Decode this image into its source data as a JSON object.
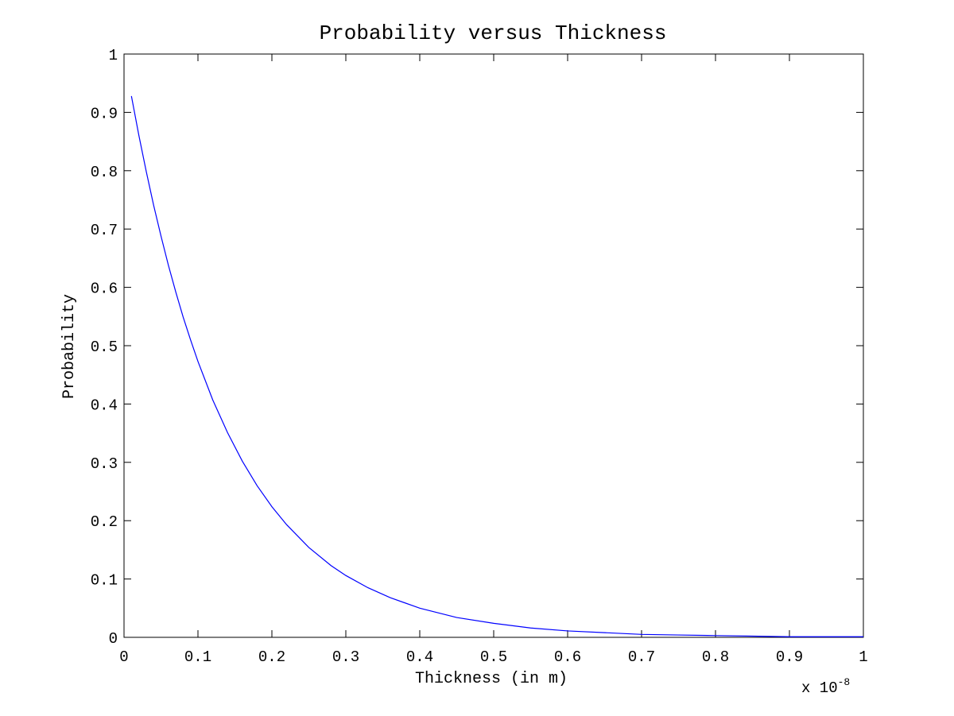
{
  "chart_data": {
    "type": "line",
    "title": "Probability versus Thickness",
    "xlabel": "Thickness (in m)",
    "ylabel": "Probability",
    "x_multiplier_base": "x 10",
    "x_multiplier_exponent": "-8",
    "xlim": [
      0,
      1
    ],
    "ylim": [
      0,
      1
    ],
    "grid": false,
    "xticks": [
      "0",
      "0.1",
      "0.2",
      "0.3",
      "0.4",
      "0.5",
      "0.6",
      "0.7",
      "0.8",
      "0.9",
      "1"
    ],
    "yticks": [
      "0",
      "0.1",
      "0.2",
      "0.3",
      "0.4",
      "0.5",
      "0.6",
      "0.7",
      "0.8",
      "0.9",
      "1"
    ],
    "series": [
      {
        "color": "#0000ff",
        "x": [
          0.01,
          0.02,
          0.03,
          0.04,
          0.05,
          0.06,
          0.07,
          0.08,
          0.09,
          0.1,
          0.12,
          0.14,
          0.16,
          0.18,
          0.2,
          0.22,
          0.25,
          0.28,
          0.3,
          0.33,
          0.36,
          0.4,
          0.45,
          0.5,
          0.55,
          0.6,
          0.65,
          0.7,
          0.75,
          0.8,
          0.85,
          0.9,
          0.95,
          1.0
        ],
        "y": [
          0.928,
          0.861,
          0.799,
          0.741,
          0.688,
          0.638,
          0.592,
          0.549,
          0.51,
          0.473,
          0.407,
          0.351,
          0.302,
          0.26,
          0.224,
          0.193,
          0.154,
          0.123,
          0.106,
          0.085,
          0.068,
          0.05,
          0.034,
          0.024,
          0.016,
          0.011,
          0.008,
          0.005,
          0.004,
          0.003,
          0.002,
          0.001,
          0.001,
          0.001
        ]
      }
    ]
  }
}
